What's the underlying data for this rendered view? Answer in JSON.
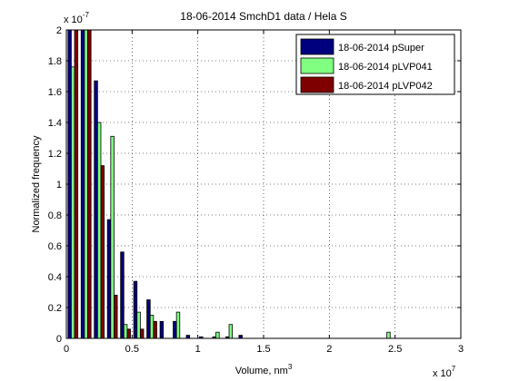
{
  "chart_data": {
    "type": "bar",
    "title": "18-06-2014 SmchD1 data / Hela S",
    "xlabel": "Volume, nm",
    "xlabel_superscript": "3",
    "ylabel": "Normalized frequency",
    "x_multiplier": "x 10",
    "x_multiplier_exponent": "7",
    "y_multiplier": "x 10",
    "y_multiplier_exponent": "-7",
    "xlim": [
      0,
      3
    ],
    "ylim": [
      0,
      2
    ],
    "xticks": [
      "0",
      "0.5",
      "1",
      "1.5",
      "2",
      "2.5",
      "3"
    ],
    "yticks": [
      "0",
      "0.2",
      "0.4",
      "0.6",
      "0.8",
      "1",
      "1.2",
      "1.4",
      "1.6",
      "1.8",
      "2"
    ],
    "grid": true,
    "legend_position": "top-right",
    "bin_width": 0.1,
    "x": [
      0.05,
      0.15,
      0.25,
      0.35,
      0.45,
      0.55,
      0.65,
      0.75,
      0.85,
      0.95,
      1.05,
      1.15,
      1.25,
      1.35,
      1.45,
      2.45
    ],
    "series": [
      {
        "name": "18-06-2014 pSuper",
        "color": "#00007f",
        "values": [
          2.0,
          2.0,
          1.67,
          0.77,
          0.56,
          0.37,
          0.25,
          0.11,
          0.11,
          0.02,
          0.01,
          0.01,
          0.01,
          0.02,
          0.0,
          0.0
        ]
      },
      {
        "name": "18-06-2014 pLVP041",
        "color": "#80ff80",
        "values": [
          1.76,
          2.0,
          1.4,
          1.31,
          0.09,
          0.17,
          0.15,
          0.0,
          0.17,
          0.0,
          0.0,
          0.04,
          0.09,
          0.0,
          0.0,
          0.04
        ]
      },
      {
        "name": "18-06-2014 pLVP042",
        "color": "#7f0000",
        "values": [
          2.0,
          2.0,
          1.12,
          0.28,
          0.06,
          0.06,
          0.11,
          0.0,
          0.0,
          0.0,
          0.0,
          0.0,
          0.0,
          0.0,
          0.0,
          0.0
        ]
      }
    ]
  }
}
